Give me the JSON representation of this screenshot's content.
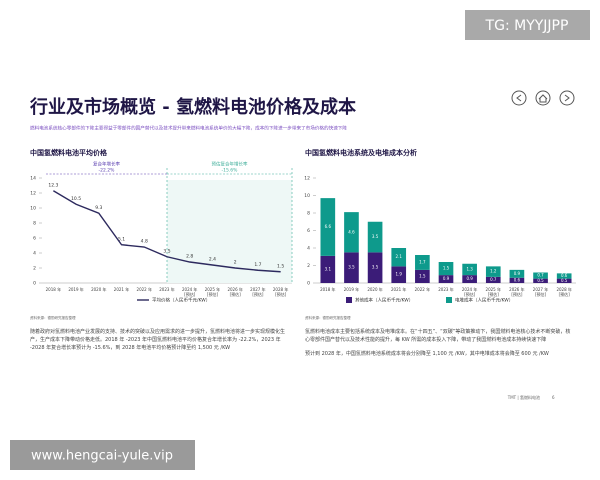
{
  "watermarks": {
    "top": "TG: MYYJJPP",
    "bottom": "www.hengcai-yule.vip"
  },
  "header": {
    "title": "行业及市场概览 - 氢燃料电池价格及成本",
    "subtitle": "燃料电池系统核心零部件的下降主要得益于零部件的国产替代以及技术提升带来燃料电池系统单价的大幅下降，成本的下降进一步带来了市场价格的快速下降"
  },
  "chart_data": [
    {
      "type": "line",
      "title": "中国氢燃料电池平均价格",
      "categories": [
        "2018 年",
        "2019 年",
        "2020 年",
        "2021 年",
        "2022 年",
        "2023 年",
        "2024 年\n[预估]",
        "2025 年\n[预估]",
        "2026 年\n[预估]",
        "2027 年\n[预估]",
        "2028 年\n[预估]"
      ],
      "series": [
        {
          "name": "平均价格（人民币千元/KW）",
          "color": "#2d2a5e",
          "values": [
            12.3,
            10.5,
            9.3,
            5.1,
            4.8,
            3.5,
            2.8,
            2.4,
            2.0,
            1.7,
            1.5
          ]
        }
      ],
      "ylim": [
        0,
        14
      ],
      "yticks": [
        0,
        2,
        4,
        6,
        8,
        10,
        12,
        14
      ],
      "annotations": [
        {
          "label": "复合年增长率",
          "value": "-22.2%"
        },
        {
          "label": "预估复合年增长率",
          "value": "-15.6%"
        }
      ]
    },
    {
      "type": "stacked_bar",
      "title": "中国氢燃料电池系统及电堆成本分析",
      "categories": [
        "2018 年",
        "2019 年",
        "2020 年",
        "2021 年",
        "2022 年",
        "2023 年",
        "2024 年\n[预估]",
        "2025 年\n[预估]",
        "2026 年\n[预估]",
        "2027 年\n[预估]",
        "2028 年\n[预估]"
      ],
      "series": [
        {
          "name": "其他成本（人民币千元/KW）",
          "color": "#3b1c78",
          "values": [
            3.1,
            3.5,
            3.5,
            1.9,
            1.5,
            0.9,
            0.9,
            0.7,
            0.6,
            0.5,
            0.5
          ]
        },
        {
          "name": "电堆成本（人民币千元/KW）",
          "color": "#0e9a8c",
          "values": [
            6.6,
            4.6,
            3.5,
            2.1,
            1.7,
            1.5,
            1.3,
            1.2,
            0.9,
            0.7,
            0.6
          ]
        }
      ],
      "ylim": [
        0,
        12
      ],
      "yticks": [
        0,
        2,
        4,
        6,
        8,
        10,
        12
      ]
    }
  ],
  "notes": [
    "资料来源：德勤研究报告整理",
    "资料来源：德勤研究报告整理"
  ],
  "paragraphs": {
    "left": [
      "随着政府对氢燃料电池产业发展的支持、技术的突破以及应用需求的进一步提升，氢燃料电池将进一步实现规模化生产，生产成本下降带动价格走低。2018 年 -2023 年中国氢燃料电池平均价格复合年增长率为 -22.2%，2023 年 -2028 年复合增长率预计为 -15.6%，到 2028 年电池平均价格预计降至约 1,500 元 /KW"
    ],
    "right": [
      "氢燃料电池成本主要包括系统成本及电堆成本。在“十四五”、“双碳”等政策推动下，我国燃料电池核心技术不断突破，核心零部件国产替代以及技术性能的提升，每 KW 所需的成本投入下降，带动了我国燃料电池成本持续快速下降",
      "预计到 2028 年，中国氢燃料电池系统成本将会分别降至 1,100 元 /KW，其中电堆成本将会降至 600 元 /KW"
    ]
  },
  "footer": {
    "text": "TMT | 氢燃料电池",
    "page": "6"
  }
}
